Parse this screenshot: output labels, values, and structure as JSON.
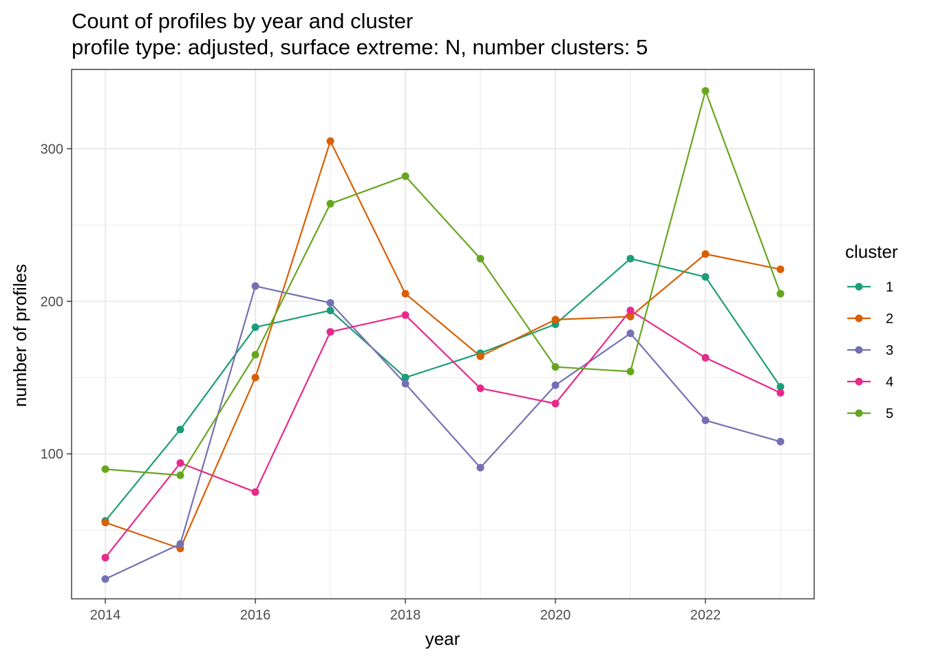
{
  "chart_data": {
    "type": "line",
    "title": "Count of profiles by year and cluster",
    "subtitle": "profile type: adjusted, surface extreme: N, number clusters: 5",
    "xlabel": "year",
    "ylabel": "number of profiles",
    "xlim": [
      2013.55,
      2023.45
    ],
    "ylim": [
      5,
      352
    ],
    "x_ticks": [
      2014,
      2016,
      2018,
      2020,
      2022
    ],
    "x_tick_labels": [
      "2014",
      "2016",
      "2018",
      "2020",
      "2022"
    ],
    "x_minor_ticks": [
      2015,
      2017,
      2019,
      2021,
      2023
    ],
    "y_ticks": [
      100,
      200,
      300
    ],
    "y_tick_labels": [
      "100",
      "200",
      "300"
    ],
    "y_minor_ticks": [
      50,
      150,
      250
    ],
    "grid": true,
    "legend": {
      "title": "cluster",
      "position": "right"
    },
    "x": [
      2014,
      2015,
      2016,
      2017,
      2018,
      2019,
      2020,
      2021,
      2022,
      2023
    ],
    "series": [
      {
        "name": "1",
        "color": "#1b9e77",
        "values": [
          56,
          116,
          183,
          194,
          150,
          166,
          185,
          228,
          216,
          144
        ]
      },
      {
        "name": "2",
        "color": "#d95f02",
        "values": [
          55,
          38,
          150,
          305,
          205,
          164,
          188,
          190,
          231,
          221
        ]
      },
      {
        "name": "3",
        "color": "#7570b3",
        "values": [
          18,
          41,
          210,
          199,
          146,
          91,
          145,
          179,
          122,
          108
        ]
      },
      {
        "name": "4",
        "color": "#e7298a",
        "values": [
          32,
          94,
          75,
          180,
          191,
          143,
          133,
          194,
          163,
          140
        ]
      },
      {
        "name": "5",
        "color": "#66a61e",
        "values": [
          90,
          86,
          165,
          264,
          282,
          228,
          157,
          154,
          338,
          205
        ]
      }
    ]
  }
}
